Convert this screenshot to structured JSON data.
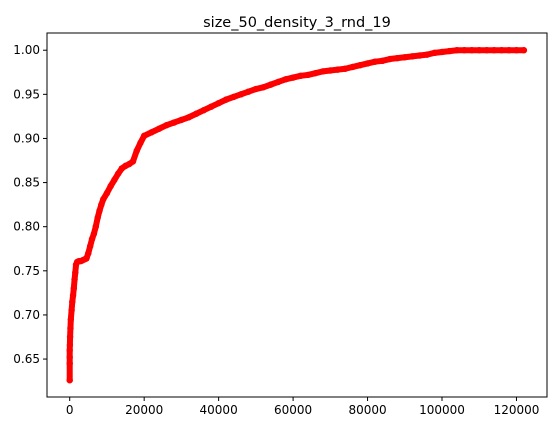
{
  "chart_data": {
    "type": "scatter",
    "title": "size_50_density_3_rnd_19",
    "xlabel": "",
    "ylabel": "",
    "xlim": [
      -6100,
      128200
    ],
    "ylim": [
      0.607,
      1.0195
    ],
    "x_ticks": [
      0,
      20000,
      40000,
      60000,
      80000,
      100000,
      120000
    ],
    "x_tick_labels": [
      "0",
      "20000",
      "40000",
      "60000",
      "80000",
      "100000",
      "120000"
    ],
    "y_ticks": [
      0.65,
      0.7,
      0.75,
      0.8,
      0.85,
      0.9,
      0.95,
      1.0
    ],
    "y_tick_labels": [
      "0.65",
      "0.70",
      "0.75",
      "0.80",
      "0.85",
      "0.90",
      "0.95",
      "1.00"
    ],
    "grid": false,
    "marker_color": "#ff0000",
    "series": [
      {
        "x": [
          0,
          0,
          0,
          0,
          50,
          100,
          200,
          300,
          500,
          700,
          900,
          1100,
          1300,
          1500,
          1700,
          2000,
          2500,
          3000,
          3500,
          4000,
          4500,
          5000,
          5500,
          6000,
          6500,
          7000,
          7500,
          8000,
          8500,
          9000,
          10000,
          11000,
          12000,
          13000,
          14000,
          15000,
          16000,
          17000,
          18000,
          19000,
          20000,
          22000,
          24000,
          26000,
          28000,
          30000,
          32000,
          34000,
          36000,
          38000,
          40000,
          42000,
          44000,
          46000,
          48000,
          50000,
          52000,
          54000,
          56000,
          58000,
          60000,
          62000,
          64000,
          66000,
          68000,
          70000,
          72000,
          74000,
          76000,
          78000,
          80000,
          82000,
          84000,
          86000,
          88000,
          90000,
          92000,
          94000,
          96000,
          98000,
          100000,
          102000,
          104000,
          106000,
          108000,
          110000,
          112000,
          114000,
          116000,
          118000,
          120000,
          122000
        ],
        "y": [
          0.626,
          0.645,
          0.652,
          0.66,
          0.666,
          0.675,
          0.685,
          0.695,
          0.705,
          0.715,
          0.722,
          0.73,
          0.74,
          0.748,
          0.757,
          0.76,
          0.761,
          0.761,
          0.762,
          0.763,
          0.764,
          0.77,
          0.778,
          0.786,
          0.792,
          0.8,
          0.81,
          0.818,
          0.825,
          0.831,
          0.838,
          0.846,
          0.853,
          0.86,
          0.866,
          0.869,
          0.871,
          0.874,
          0.886,
          0.895,
          0.903,
          0.907,
          0.911,
          0.915,
          0.918,
          0.921,
          0.924,
          0.928,
          0.932,
          0.936,
          0.94,
          0.944,
          0.947,
          0.95,
          0.953,
          0.956,
          0.958,
          0.961,
          0.964,
          0.967,
          0.969,
          0.971,
          0.972,
          0.974,
          0.976,
          0.977,
          0.978,
          0.979,
          0.981,
          0.983,
          0.985,
          0.987,
          0.988,
          0.99,
          0.991,
          0.992,
          0.993,
          0.994,
          0.995,
          0.997,
          0.998,
          0.999,
          1.0,
          1.0,
          1.0,
          1.0,
          1.0,
          1.0,
          1.0,
          1.0,
          1.0,
          1.0
        ]
      }
    ]
  }
}
